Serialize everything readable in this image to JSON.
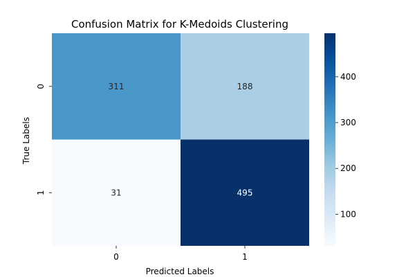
{
  "chart_data": {
    "type": "heatmap",
    "title": "Confusion Matrix for K-Medoids Clustering",
    "xlabel": "Predicted Labels",
    "ylabel": "True Labels",
    "x_categories": [
      "0",
      "1"
    ],
    "y_categories": [
      "0",
      "1"
    ],
    "values": [
      [
        311,
        188
      ],
      [
        31,
        495
      ]
    ],
    "annotations": true,
    "colormap": "Blues",
    "color_range": [
      31,
      495
    ],
    "colorbar": {
      "position": "right",
      "ticks": [
        100,
        200,
        300,
        400
      ],
      "tick_labels": [
        "100",
        "200",
        "300",
        "400"
      ]
    },
    "grid": false
  }
}
